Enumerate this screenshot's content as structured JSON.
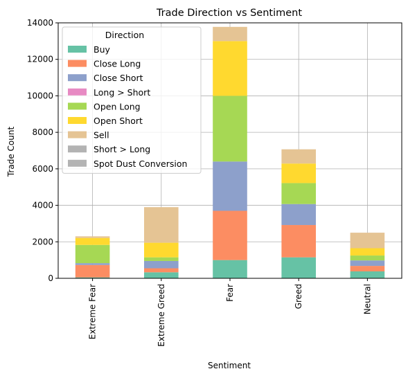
{
  "chart_data": {
    "type": "bar",
    "stacked": true,
    "title": "Trade Direction vs Sentiment",
    "xlabel": "Sentiment",
    "ylabel": "Trade Count",
    "ylim": [
      0,
      14000
    ],
    "yticks": [
      0,
      2000,
      4000,
      6000,
      8000,
      10000,
      12000,
      14000
    ],
    "grid": true,
    "legend_title": "Direction",
    "legend_position": "upper-left",
    "categories": [
      "Extreme Fear",
      "Extreme Greed",
      "Fear",
      "Greed",
      "Neutral"
    ],
    "series": [
      {
        "name": "Buy",
        "color": "#66c2a5",
        "values": [
          50,
          330,
          1000,
          1150,
          380
        ]
      },
      {
        "name": "Close Long",
        "color": "#fc8d62",
        "values": [
          680,
          220,
          2700,
          1770,
          300
        ]
      },
      {
        "name": "Close Short",
        "color": "#8da0cb",
        "values": [
          100,
          400,
          2700,
          1150,
          300
        ]
      },
      {
        "name": "Long > Short",
        "color": "#e78ac3",
        "values": [
          0,
          0,
          0,
          0,
          0
        ]
      },
      {
        "name": "Open Long",
        "color": "#a6d854",
        "values": [
          1000,
          200,
          3600,
          1150,
          270
        ]
      },
      {
        "name": "Open Short",
        "color": "#ffd92f",
        "values": [
          380,
          800,
          3000,
          1070,
          400
        ]
      },
      {
        "name": "Sell",
        "color": "#e5c494",
        "values": [
          90,
          1950,
          780,
          780,
          850
        ]
      },
      {
        "name": "Short > Long",
        "color": "#b3b3b3",
        "values": [
          0,
          0,
          0,
          0,
          0
        ]
      },
      {
        "name": "Spot Dust Conversion",
        "color": "#b3b3b3",
        "values": [
          0,
          0,
          0,
          0,
          0
        ]
      }
    ]
  }
}
